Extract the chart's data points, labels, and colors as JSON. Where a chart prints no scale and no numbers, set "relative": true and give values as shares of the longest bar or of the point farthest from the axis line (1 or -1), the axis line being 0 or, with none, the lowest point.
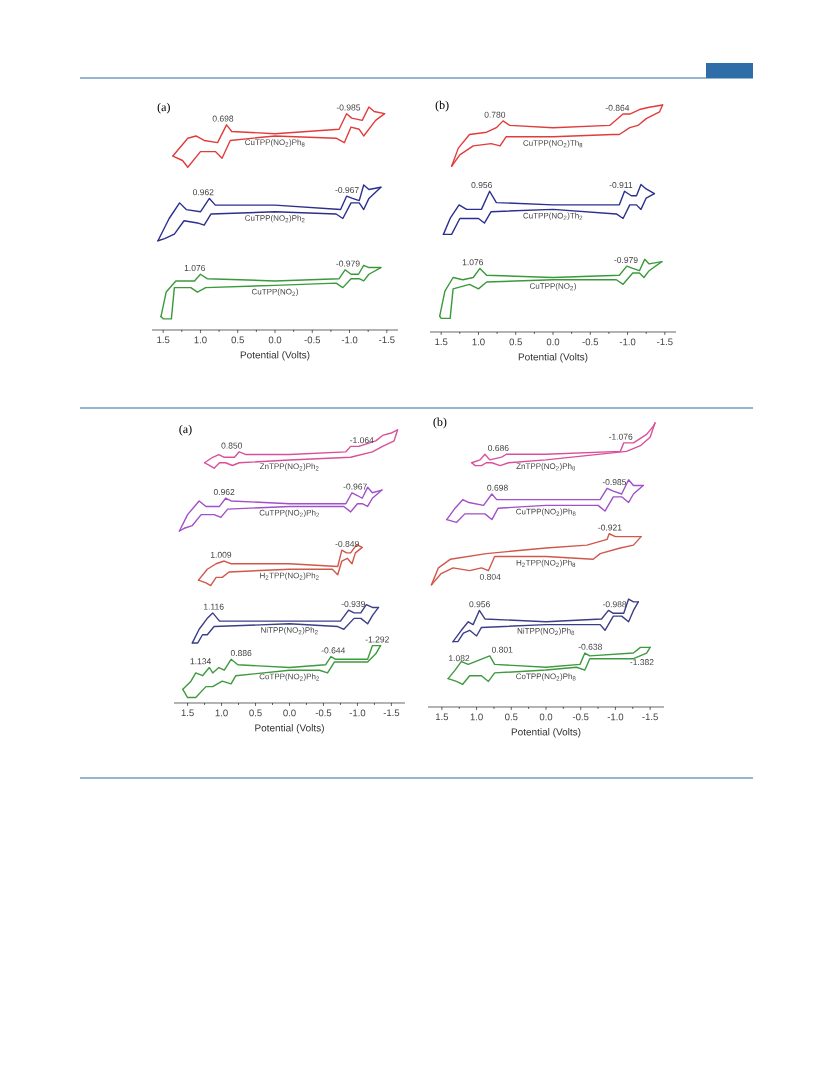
{
  "chart_data": [
    {
      "type": "line",
      "title": "(a)",
      "xlabel": "Potential (Volts)",
      "relative": true,
      "tick_labels": "x",
      "xlim": [
        1.65,
        -1.65
      ],
      "xticks": [
        {
          "value": 1.5,
          "label": "1.5"
        },
        {
          "value": 1.0,
          "label": "1.0"
        },
        {
          "value": 0.5,
          "label": "0.5"
        },
        {
          "value": 0.0,
          "label": "0.0"
        },
        {
          "value": -0.5,
          "label": "-0.5"
        },
        {
          "value": -1.0,
          "label": "-1.0"
        },
        {
          "value": -1.5,
          "label": "-1.5"
        },
        {
          "value": 1.25,
          "label": null
        },
        {
          "value": 0.75,
          "label": null
        },
        {
          "value": 0.25,
          "label": null
        },
        {
          "value": -0.25,
          "label": null
        },
        {
          "value": -0.75,
          "label": null
        },
        {
          "value": -1.25,
          "label": null
        }
      ],
      "series": [
        {
          "name": "CuTPP(NO$_{2}$)Ph$_{8}$",
          "color": "#e03c3c",
          "x": [
            1.37,
            1.17,
            1.06,
            0.95,
            0.77,
            0.65,
            0.58,
            0,
            -0.86,
            -0.96,
            -1.03,
            -1.17,
            -1.26,
            -1.33,
            -1.47
          ],
          "values": [
            0.78,
            0.86,
            0.87,
            0.85,
            0.84,
            0.92,
            0.89,
            0.88,
            0.9,
            0.97,
            0.95,
            0.94,
            1.0,
            0.98,
            0.97
          ]
        },
        {
          "color": "#e03c3c",
          "x": [
            -1.47,
            -1.35,
            -1.19,
            -1.13,
            -1.02,
            -0.93,
            -0.82,
            0,
            0.6,
            0.71,
            0.8,
            1.0,
            1.17,
            1.24,
            1.37
          ],
          "values": [
            0.97,
            0.94,
            0.87,
            0.9,
            0.91,
            0.84,
            0.86,
            0.87,
            0.85,
            0.77,
            0.8,
            0.8,
            0.73,
            0.76,
            0.78
          ]
        },
        {
          "name": "CuTPP(NO$_{2}$)Ph$_{2}$",
          "color": "#2b2f8f",
          "x": [
            1.57,
            1.42,
            1.28,
            1.19,
            1.0,
            0.88,
            0.8,
            0,
            -0.88,
            -0.96,
            -1.04,
            -1.13,
            -1.19,
            -1.26,
            -1.42
          ],
          "values": [
            0.4,
            0.5,
            0.57,
            0.54,
            0.53,
            0.59,
            0.56,
            0.56,
            0.54,
            0.6,
            0.59,
            0.58,
            0.65,
            0.63,
            0.64
          ]
        },
        {
          "color": "#2b2f8f",
          "x": [
            -1.42,
            -1.26,
            -1.19,
            -1.13,
            -1.02,
            -0.91,
            -0.82,
            0,
            0.86,
            0.95,
            1.04,
            1.22,
            1.35,
            1.48,
            1.57
          ],
          "values": [
            0.64,
            0.59,
            0.54,
            0.57,
            0.57,
            0.5,
            0.52,
            0.53,
            0.52,
            0.47,
            0.48,
            0.49,
            0.43,
            0.41,
            0.4
          ]
        },
        {
          "name": "CuTPP(NO$_{2}$)",
          "color": "#3a9a3a",
          "x": [
            1.53,
            1.46,
            1.33,
            1.22,
            1.08,
            1.0,
            0.91,
            0,
            -0.86,
            -0.94,
            -1.02,
            -1.12,
            -1.19,
            -1.26,
            -1.42
          ],
          "values": [
            0.06,
            0.17,
            0.22,
            0.22,
            0.22,
            0.25,
            0.23,
            0.22,
            0.23,
            0.27,
            0.25,
            0.25,
            0.29,
            0.28,
            0.28
          ]
        },
        {
          "color": "#3a9a3a",
          "x": [
            -1.42,
            -1.26,
            -1.19,
            -1.13,
            -1.02,
            -0.91,
            -0.82,
            0,
            0.93,
            1.04,
            1.13,
            1.35,
            1.39,
            1.5,
            1.53
          ],
          "values": [
            0.28,
            0.25,
            0.22,
            0.23,
            0.23,
            0.19,
            0.21,
            0.2,
            0.19,
            0.17,
            0.19,
            0.19,
            0.05,
            0.05,
            0.06
          ]
        }
      ],
      "annotations": [
        {
          "text": "0.698",
          "x": 0.698,
          "y": 0.89
        },
        {
          "text": "-0.985",
          "x": -0.985,
          "y": 0.96
        },
        {
          "text": "0.962",
          "x": 0.962,
          "y": 0.55
        },
        {
          "text": "-0.967",
          "x": -0.967,
          "y": 0.6
        },
        {
          "text": "1.076",
          "x": 1.076,
          "y": 0.22
        },
        {
          "text": "-0.979",
          "x": -0.979,
          "y": 0.26
        }
      ]
    },
    {
      "type": "line",
      "title": "(b)",
      "xlabel": "Potential (Volts)",
      "relative": true,
      "tick_labels": "x",
      "xlim": [
        1.65,
        -1.65
      ],
      "xticks": [
        {
          "value": 1.5,
          "label": "1.5"
        },
        {
          "value": 1.0,
          "label": "1.0"
        },
        {
          "value": 0.5,
          "label": "0.5"
        },
        {
          "value": 0.0,
          "label": "0.0"
        },
        {
          "value": -0.5,
          "label": "-0.5"
        },
        {
          "value": -1.0,
          "label": "-1.0"
        },
        {
          "value": -1.5,
          "label": "-1.5"
        },
        {
          "value": 1.25,
          "label": null
        },
        {
          "value": 0.75,
          "label": null
        },
        {
          "value": 0.25,
          "label": null
        },
        {
          "value": -0.25,
          "label": null
        },
        {
          "value": -0.75,
          "label": null
        },
        {
          "value": -1.25,
          "label": null
        }
      ],
      "series": [
        {
          "name": "CuTPP(NO$_{2}$)Th$_{8}$",
          "color": "#e03c3c",
          "x": [
            1.36,
            1.27,
            1.12,
            0.89,
            0.76,
            0.67,
            0.58,
            0,
            -0.76,
            -0.94,
            -1.03,
            -1.16,
            -1.29,
            -1.47
          ],
          "values": [
            0.73,
            0.81,
            0.87,
            0.88,
            0.9,
            0.93,
            0.91,
            0.9,
            0.91,
            0.96,
            0.96,
            0.98,
            0.99,
            1.0
          ]
        },
        {
          "color": "#e03c3c",
          "x": [
            -1.47,
            -1.43,
            -1.25,
            -1.14,
            -1.03,
            -0.89,
            -0.8,
            0,
            0.63,
            0.71,
            0.83,
            1.07,
            1.25,
            1.36
          ],
          "values": [
            1.0,
            0.97,
            0.94,
            0.91,
            0.9,
            0.87,
            0.87,
            0.86,
            0.86,
            0.82,
            0.83,
            0.82,
            0.78,
            0.73
          ]
        },
        {
          "name": "CuTPP(NO$_{2}$)Th$_{2}$",
          "color": "#2b2f8f",
          "x": [
            1.47,
            1.38,
            1.26,
            1.16,
            0.96,
            0.85,
            0.76,
            0,
            -0.89,
            -0.96,
            -1.05,
            -1.12,
            -1.18,
            -1.25,
            -1.36
          ],
          "values": [
            0.43,
            0.5,
            0.56,
            0.54,
            0.54,
            0.62,
            0.57,
            0.56,
            0.56,
            0.62,
            0.6,
            0.6,
            0.65,
            0.63,
            0.61
          ]
        },
        {
          "color": "#2b2f8f",
          "x": [
            -1.36,
            -1.25,
            -1.18,
            -1.12,
            -1.03,
            -0.94,
            -0.85,
            0,
            0.83,
            0.92,
            1.0,
            1.25,
            1.36,
            1.47
          ],
          "values": [
            0.61,
            0.59,
            0.54,
            0.56,
            0.56,
            0.5,
            0.52,
            0.54,
            0.53,
            0.48,
            0.5,
            0.5,
            0.43,
            0.43
          ]
        },
        {
          "name": "CuTPP(NO$_{2}$)",
          "color": "#3a9a3a",
          "x": [
            1.52,
            1.45,
            1.34,
            1.21,
            1.07,
            0.98,
            0.89,
            0,
            -0.89,
            -0.99,
            -1.07,
            -1.16,
            -1.23,
            -1.29,
            -1.46
          ],
          "values": [
            0.07,
            0.18,
            0.24,
            0.23,
            0.24,
            0.28,
            0.25,
            0.24,
            0.25,
            0.29,
            0.28,
            0.27,
            0.32,
            0.3,
            0.31
          ]
        },
        {
          "color": "#3a9a3a",
          "x": [
            -1.46,
            -1.29,
            -1.22,
            -1.16,
            -1.07,
            -0.94,
            -0.85,
            0,
            0.89,
            1.0,
            1.12,
            1.34,
            1.38,
            1.5,
            1.52
          ],
          "values": [
            0.31,
            0.27,
            0.24,
            0.26,
            0.26,
            0.21,
            0.23,
            0.23,
            0.22,
            0.19,
            0.21,
            0.19,
            0.06,
            0.06,
            0.07
          ]
        }
      ],
      "annotations": [
        {
          "text": "0.780",
          "x": 0.78,
          "y": 0.9
        },
        {
          "text": "-0.864",
          "x": -0.864,
          "y": 0.94
        },
        {
          "text": "0.956",
          "x": 0.956,
          "y": 0.54
        },
        {
          "text": "-0.911",
          "x": -0.911,
          "y": 0.58
        },
        {
          "text": "1.076",
          "x": 1.076,
          "y": 0.24
        },
        {
          "text": "-0.979",
          "x": -0.979,
          "y": 0.29
        }
      ]
    },
    {
      "type": "line",
      "title": "(a)",
      "xlabel": "Potential (Volts)",
      "relative": true,
      "tick_labels": "x",
      "xlim": [
        1.7,
        -1.7
      ],
      "xticks": [
        {
          "value": 1.5,
          "label": "1.5"
        },
        {
          "value": 1.0,
          "label": "1.0"
        },
        {
          "value": 0.5,
          "label": "0.5"
        },
        {
          "value": 0.0,
          "label": "0.0"
        },
        {
          "value": -0.5,
          "label": "-0.5"
        },
        {
          "value": -1.0,
          "label": "-1.0"
        },
        {
          "value": -1.5,
          "label": "-1.5"
        },
        {
          "value": 1.25,
          "label": null
        },
        {
          "value": 0.75,
          "label": null
        },
        {
          "value": 0.25,
          "label": null
        },
        {
          "value": -0.25,
          "label": null
        },
        {
          "value": -0.75,
          "label": null
        },
        {
          "value": -1.25,
          "label": null
        }
      ],
      "series": [
        {
          "name": "ZnTPP(NO$_{2}$)Ph$_{2}$",
          "color": "#d9509a",
          "x": [
            1.25,
            1.13,
            1.04,
            0.96,
            0.81,
            0.74,
            0.64,
            0,
            -0.83,
            -0.9,
            -1.02,
            -1.27,
            -1.37,
            -1.51,
            -1.59
          ],
          "values": [
            0.88,
            0.9,
            0.91,
            0.9,
            0.9,
            0.92,
            0.91,
            0.91,
            0.92,
            0.94,
            0.94,
            0.96,
            0.98,
            0.99,
            1.0
          ]
        },
        {
          "color": "#d9509a",
          "x": [
            -1.59,
            -1.54,
            -1.37,
            -1.22,
            -0.9,
            0,
            0.74,
            0.84,
            0.94,
            1.03,
            1.11,
            1.18,
            1.25
          ],
          "values": [
            1.0,
            0.96,
            0.94,
            0.92,
            0.9,
            0.89,
            0.88,
            0.87,
            0.88,
            0.88,
            0.86,
            0.87,
            0.88
          ]
        },
        {
          "name": "CuTPP(NO$_{2}$)Ph$_{2}$",
          "color": "#a050c8",
          "x": [
            1.62,
            1.5,
            1.33,
            1.23,
            1.03,
            0.94,
            0.86,
            0,
            -0.83,
            -0.92,
            -1.0,
            -1.07,
            -1.15,
            -1.22,
            -1.36
          ],
          "values": [
            0.63,
            0.69,
            0.74,
            0.72,
            0.72,
            0.75,
            0.74,
            0.73,
            0.73,
            0.77,
            0.76,
            0.75,
            0.79,
            0.77,
            0.78
          ]
        },
        {
          "color": "#a050c8",
          "x": [
            -1.36,
            -1.22,
            -1.15,
            -1.07,
            -1.0,
            -0.9,
            -0.8,
            0,
            0.91,
            1.01,
            1.11,
            1.3,
            1.43,
            1.55,
            1.62
          ],
          "values": [
            0.78,
            0.75,
            0.72,
            0.73,
            0.73,
            0.7,
            0.72,
            0.72,
            0.71,
            0.68,
            0.69,
            0.69,
            0.65,
            0.64,
            0.63
          ]
        },
        {
          "name": "H$_{2}$TPP(NO$_{2}$)Ph$_{2}$",
          "color": "#d0584a",
          "x": [
            1.34,
            1.21,
            1.08,
            0.96,
            0.86,
            0,
            -0.71,
            -0.77,
            -0.84,
            -0.9,
            -0.99,
            -1.07
          ],
          "values": [
            0.45,
            0.49,
            0.51,
            0.52,
            0.51,
            0.51,
            0.5,
            0.56,
            0.55,
            0.55,
            0.58,
            0.57
          ]
        },
        {
          "color": "#d0584a",
          "x": [
            -1.07,
            -0.97,
            -0.92,
            -0.85,
            -0.77,
            -0.71,
            -0.63,
            0,
            0.89,
            0.99,
            1.08,
            1.16,
            1.23,
            1.34
          ],
          "values": [
            0.57,
            0.55,
            0.51,
            0.53,
            0.52,
            0.47,
            0.49,
            0.49,
            0.48,
            0.46,
            0.46,
            0.43,
            0.44,
            0.45
          ]
        },
        {
          "name": "NiTPP(NO$_{2}$)Ph$_{2}$",
          "color": "#3b3e86",
          "x": [
            1.43,
            1.33,
            1.21,
            1.13,
            1.03,
            0,
            -0.75,
            -0.87,
            -0.95,
            -1.05,
            -1.13,
            -1.22,
            -1.31
          ],
          "values": [
            0.22,
            0.27,
            0.31,
            0.33,
            0.3,
            0.3,
            0.3,
            0.34,
            0.33,
            0.33,
            0.36,
            0.35,
            0.35
          ]
        },
        {
          "color": "#3b3e86",
          "x": [
            -1.31,
            -1.22,
            -1.15,
            -1.05,
            -0.95,
            -0.8,
            -0.71,
            0,
            1.11,
            1.21,
            1.28,
            1.35,
            1.43
          ],
          "values": [
            0.35,
            0.32,
            0.29,
            0.31,
            0.31,
            0.27,
            0.28,
            0.29,
            0.28,
            0.25,
            0.25,
            0.22,
            0.22
          ]
        },
        {
          "name": "CoTPP(NO$_{2}$)Ph$_{2}$",
          "color": "#3e9a3e",
          "x": [
            1.57,
            1.45,
            1.38,
            1.28,
            1.18,
            1.13,
            1.04,
            0.96,
            0.86,
            0.76,
            0,
            -0.53,
            -0.61,
            -0.68,
            -1.15,
            -1.22,
            -1.34
          ],
          "values": [
            0.05,
            0.08,
            0.11,
            0.1,
            0.13,
            0.11,
            0.13,
            0.12,
            0.16,
            0.14,
            0.13,
            0.14,
            0.17,
            0.16,
            0.16,
            0.21,
            0.21
          ]
        },
        {
          "color": "#3e9a3e",
          "x": [
            -1.34,
            -1.27,
            -1.15,
            -0.66,
            -0.56,
            -0.44,
            0,
            0.79,
            0.86,
            0.99,
            1.13,
            1.23,
            1.38,
            1.5,
            1.57
          ],
          "values": [
            0.21,
            0.18,
            0.15,
            0.15,
            0.11,
            0.12,
            0.12,
            0.1,
            0.07,
            0.08,
            0.06,
            0.06,
            0.02,
            0.02,
            0.05
          ]
        }
      ],
      "annotations": [
        {
          "text": "0.850",
          "x": 0.85,
          "y": 0.9
        },
        {
          "text": "-1.064",
          "x": -1.064,
          "y": 0.94
        },
        {
          "text": "0.962",
          "x": 0.962,
          "y": 0.75
        },
        {
          "text": "-0.967",
          "x": -0.967,
          "y": 0.76
        },
        {
          "text": "1.009",
          "x": 1.009,
          "y": 0.52
        },
        {
          "text": "-0.849",
          "x": -0.849,
          "y": 0.55
        },
        {
          "text": "1.116",
          "x": 1.116,
          "y": 0.33
        },
        {
          "text": "-0.939",
          "x": -0.939,
          "y": 0.33
        },
        {
          "text": "1.134",
          "x": 1.134,
          "y": 0.12
        },
        {
          "text": "0.886",
          "x": 0.886,
          "y": 0.15
        },
        {
          "text": "-0.644",
          "x": -0.644,
          "y": 0.17
        },
        {
          "text": "-1.292",
          "x": -1.292,
          "y": 0.21
        }
      ]
    },
    {
      "type": "line",
      "title": "(b)",
      "xlabel": "Potential (Volts)",
      "relative": true,
      "tick_labels": "x",
      "xlim": [
        1.7,
        -1.7
      ],
      "xticks": [
        {
          "value": 1.5,
          "label": "1.5"
        },
        {
          "value": 1.0,
          "label": "1.0"
        },
        {
          "value": 0.5,
          "label": "0.5"
        },
        {
          "value": 0.0,
          "label": "0.0"
        },
        {
          "value": -0.5,
          "label": "-0.5"
        },
        {
          "value": -1.0,
          "label": "-1.0"
        },
        {
          "value": -1.5,
          "label": "-1.5"
        },
        {
          "value": 1.25,
          "label": null
        },
        {
          "value": 0.75,
          "label": null
        },
        {
          "value": 0.25,
          "label": null
        },
        {
          "value": -0.25,
          "label": null
        },
        {
          "value": -0.75,
          "label": null
        },
        {
          "value": -1.25,
          "label": null
        }
      ],
      "series": [
        {
          "name": "ZnTPP(NO$_{2}$)Ph$_{8}$",
          "color": "#d9509a",
          "x": [
            1.07,
            0.95,
            0.88,
            0.81,
            0.64,
            0.57,
            0.52,
            0,
            -1.07,
            -1.12,
            -1.26,
            -1.45,
            -1.55,
            -1.57
          ],
          "values": [
            0.86,
            0.87,
            0.89,
            0.87,
            0.88,
            0.89,
            0.89,
            0.89,
            0.9,
            0.93,
            0.93,
            0.96,
            0.99,
            1.0
          ]
        },
        {
          "color": "#d9509a",
          "x": [
            -1.57,
            -1.5,
            -1.36,
            -1.16,
            0,
            0.54,
            0.66,
            0.78,
            0.86,
            0.93,
            1.02,
            1.07
          ],
          "values": [
            1.0,
            0.95,
            0.92,
            0.9,
            0.87,
            0.86,
            0.85,
            0.86,
            0.86,
            0.85,
            0.85,
            0.86
          ]
        },
        {
          "name": "CuTPP(NO$_{2}$)Ph$_{8}$",
          "color": "#a050c8",
          "x": [
            1.43,
            1.31,
            1.2,
            1.11,
            0.9,
            0.78,
            0.71,
            0,
            -0.78,
            -0.88,
            -0.97,
            -1.09,
            -1.19,
            -1.26,
            -1.4
          ],
          "values": [
            0.66,
            0.7,
            0.73,
            0.72,
            0.71,
            0.75,
            0.73,
            0.73,
            0.73,
            0.77,
            0.76,
            0.75,
            0.8,
            0.78,
            0.78
          ]
        },
        {
          "color": "#a050c8",
          "x": [
            -1.4,
            -1.26,
            -1.19,
            -1.09,
            -0.97,
            -0.85,
            -0.75,
            0,
            0.69,
            0.78,
            0.88,
            1.17,
            1.29,
            1.43
          ],
          "values": [
            0.78,
            0.75,
            0.72,
            0.74,
            0.74,
            0.69,
            0.71,
            0.71,
            0.7,
            0.66,
            0.68,
            0.68,
            0.65,
            0.66
          ]
        },
        {
          "name": "H$_{2}$TPP(NO$_{2}$)Ph$_{8}$",
          "color": "#d0584a",
          "x": [
            1.65,
            1.55,
            1.38,
            0.86,
            0,
            -0.59,
            -0.88,
            -0.91,
            -1.0,
            -1.37
          ],
          "values": [
            0.43,
            0.49,
            0.52,
            0.54,
            0.56,
            0.57,
            0.59,
            0.61,
            0.6,
            0.6
          ]
        },
        {
          "color": "#d0584a",
          "x": [
            -1.37,
            -1.26,
            -1.07,
            -0.78,
            -0.68,
            0,
            0.74,
            0.83,
            0.93,
            1.1,
            1.34,
            1.51,
            1.65
          ],
          "values": [
            0.6,
            0.57,
            0.56,
            0.54,
            0.52,
            0.53,
            0.53,
            0.48,
            0.49,
            0.48,
            0.49,
            0.47,
            0.43
          ]
        },
        {
          "name": "NiTPP(NO$_{2}$)Ph$_{8}$",
          "color": "#3b3e86",
          "x": [
            1.34,
            1.22,
            1.12,
            1.05,
            0.96,
            0.88,
            0,
            -0.8,
            -0.9,
            -0.97,
            -1.12,
            -1.19,
            -1.26,
            -1.33
          ],
          "values": [
            0.23,
            0.27,
            0.3,
            0.29,
            0.34,
            0.31,
            0.3,
            0.31,
            0.34,
            0.33,
            0.33,
            0.38,
            0.37,
            0.37
          ]
        },
        {
          "color": "#3b3e86",
          "x": [
            -1.33,
            -1.26,
            -1.19,
            -1.09,
            -0.97,
            -0.85,
            -0.78,
            0,
            0.93,
            1.0,
            1.1,
            1.19,
            1.27,
            1.34
          ],
          "values": [
            0.37,
            0.34,
            0.3,
            0.32,
            0.32,
            0.27,
            0.29,
            0.29,
            0.28,
            0.25,
            0.27,
            0.26,
            0.23,
            0.23
          ]
        },
        {
          "name": "CoTPP(NO$_{2}$)Ph$_{8}$",
          "color": "#3e9a3e",
          "x": [
            1.41,
            1.31,
            1.22,
            1.12,
            0.81,
            0.74,
            0,
            -0.49,
            -0.56,
            -0.63,
            -1.26,
            -1.36,
            -1.5
          ],
          "values": [
            0.1,
            0.13,
            0.16,
            0.15,
            0.18,
            0.15,
            0.14,
            0.15,
            0.19,
            0.18,
            0.19,
            0.21,
            0.21
          ]
        },
        {
          "color": "#3e9a3e",
          "x": [
            -1.5,
            -1.45,
            -1.26,
            -0.63,
            -0.56,
            -0.44,
            0,
            0.74,
            0.83,
            0.93,
            1.1,
            1.2,
            1.29,
            1.41
          ],
          "values": [
            0.21,
            0.19,
            0.17,
            0.17,
            0.13,
            0.14,
            0.13,
            0.12,
            0.09,
            0.11,
            0.11,
            0.08,
            0.09,
            0.1
          ]
        }
      ],
      "annotations": [
        {
          "text": "0.686",
          "x": 0.686,
          "y": 0.88
        },
        {
          "text": "-1.076",
          "x": -1.076,
          "y": 0.91
        },
        {
          "text": "0.698",
          "x": 0.698,
          "y": 0.73
        },
        {
          "text": "-0.985",
          "x": -0.985,
          "y": 0.76
        },
        {
          "text": "-0.921",
          "x": -0.921,
          "y": 0.61
        },
        {
          "text": "0.804",
          "x": 0.804,
          "y": 0.49
        },
        {
          "text": "0.956",
          "x": 0.956,
          "y": 0.34
        },
        {
          "text": "-0.988",
          "x": -0.988,
          "y": 0.33
        },
        {
          "text": "1.082",
          "x": 1.082,
          "y": 0.15
        },
        {
          "text": "0.801",
          "x": 0.801,
          "y": 0.18
        },
        {
          "text": "-0.638",
          "x": -0.638,
          "y": 0.18
        },
        {
          "text": "-1.382",
          "x": -1.382,
          "y": 0.18
        }
      ]
    }
  ]
}
